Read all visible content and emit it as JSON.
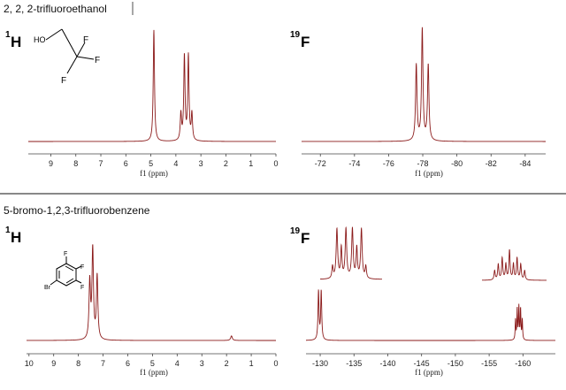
{
  "sections": [
    {
      "title": "2, 2, 2-trifluoroethanol"
    },
    {
      "title": "5-bromo-1,2,3-trifluorobenzene"
    }
  ],
  "molecules": {
    "tfe": {
      "atoms": [
        "HO",
        "F",
        "F",
        "F"
      ]
    },
    "brtfb": {
      "atoms": [
        "F",
        "F",
        "F",
        "Br"
      ]
    }
  },
  "chart_data": [
    {
      "type": "line",
      "nucleus": {
        "mass": "1",
        "symbol": "H"
      },
      "xlabel": "f1 (ppm)",
      "xlim": [
        9.9,
        0
      ],
      "ticks": [
        9,
        8,
        7,
        6,
        5,
        4,
        3,
        2,
        1,
        0
      ],
      "color": "#8b1a1a",
      "peaks": [
        {
          "x": 4.88,
          "height": 1.0,
          "width": 0.03
        },
        {
          "x": 3.8,
          "height": 0.24,
          "width": 0.03
        },
        {
          "x": 3.66,
          "height": 0.76,
          "width": 0.03
        },
        {
          "x": 3.5,
          "height": 0.76,
          "width": 0.03
        },
        {
          "x": 3.36,
          "height": 0.24,
          "width": 0.03
        }
      ]
    },
    {
      "type": "line",
      "nucleus": {
        "mass": "19",
        "symbol": "F"
      },
      "xlabel": "f1 (ppm)",
      "xlim": [
        -70.9,
        -85.2
      ],
      "ticks": [
        -72,
        -74,
        -76,
        -78,
        -80,
        -82,
        -84
      ],
      "color": "#8b1a1a",
      "peaks": [
        {
          "x": -77.62,
          "height": 0.68,
          "width": 0.05
        },
        {
          "x": -77.97,
          "height": 1.0,
          "width": 0.05
        },
        {
          "x": -78.32,
          "height": 0.68,
          "width": 0.05
        }
      ]
    },
    {
      "type": "line",
      "nucleus": {
        "mass": "1",
        "symbol": "H"
      },
      "xlabel": "f1 (ppm)",
      "xlim": [
        10.1,
        0
      ],
      "ticks": [
        10,
        9,
        8,
        7,
        6,
        5,
        4,
        3,
        2,
        1,
        0
      ],
      "color": "#8b1a1a",
      "peaks": [
        {
          "x": 7.54,
          "height": 0.63,
          "width": 0.035
        },
        {
          "x": 7.42,
          "height": 1.0,
          "width": 0.035
        },
        {
          "x": 7.24,
          "height": 0.7,
          "width": 0.035
        },
        {
          "x": 1.8,
          "height": 0.05,
          "width": 0.04
        }
      ]
    },
    {
      "type": "line",
      "nucleus": {
        "mass": "19",
        "symbol": "F"
      },
      "xlabel": "f1 (ppm)",
      "xlim": [
        -127.9,
        -164.8
      ],
      "ticks": [
        -130,
        -135,
        -140,
        -145,
        -150,
        -155,
        -160
      ],
      "color": "#8b1a1a",
      "peaks": [
        {
          "x": -129.75,
          "height": 0.92,
          "width": 0.09
        },
        {
          "x": -130.15,
          "height": 0.92,
          "width": 0.09
        },
        {
          "x": -158.9,
          "height": 0.38,
          "width": 0.06
        },
        {
          "x": -159.15,
          "height": 0.58,
          "width": 0.06
        },
        {
          "x": -159.4,
          "height": 0.62,
          "width": 0.06
        },
        {
          "x": -159.65,
          "height": 0.58,
          "width": 0.06
        },
        {
          "x": -159.9,
          "height": 0.38,
          "width": 0.06
        }
      ],
      "insets": [
        {
          "xlim": [
            -128.8,
            -131.2
          ],
          "peaks": [
            {
              "x": -129.45,
              "height": 0.9,
              "width": 0.035
            },
            {
              "x": -129.62,
              "height": 0.55,
              "width": 0.03
            },
            {
              "x": -129.8,
              "height": 0.9,
              "width": 0.035
            },
            {
              "x": -130.05,
              "height": 0.9,
              "width": 0.035
            },
            {
              "x": -130.22,
              "height": 0.55,
              "width": 0.03
            },
            {
              "x": -130.4,
              "height": 0.9,
              "width": 0.035
            },
            {
              "x": -129.28,
              "height": 0.22,
              "width": 0.03
            },
            {
              "x": -130.57,
              "height": 0.22,
              "width": 0.03
            }
          ]
        },
        {
          "xlim": [
            -158.4,
            -160.7
          ],
          "peaks": [
            {
              "x": -158.85,
              "height": 0.3,
              "width": 0.025
            },
            {
              "x": -158.98,
              "height": 0.5,
              "width": 0.025
            },
            {
              "x": -159.12,
              "height": 0.7,
              "width": 0.025
            },
            {
              "x": -159.25,
              "height": 0.5,
              "width": 0.025
            },
            {
              "x": -159.38,
              "height": 0.95,
              "width": 0.025
            },
            {
              "x": -159.52,
              "height": 0.5,
              "width": 0.025
            },
            {
              "x": -159.65,
              "height": 0.7,
              "width": 0.025
            },
            {
              "x": -159.78,
              "height": 0.5,
              "width": 0.025
            },
            {
              "x": -159.92,
              "height": 0.3,
              "width": 0.025
            }
          ]
        }
      ]
    }
  ]
}
